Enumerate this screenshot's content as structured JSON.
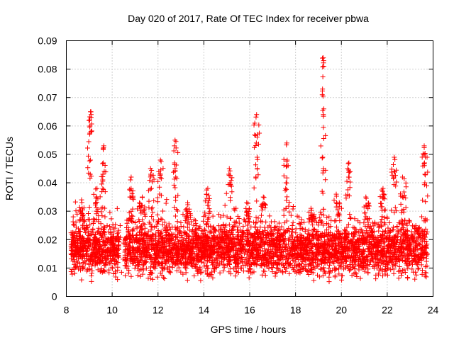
{
  "chart_data": {
    "type": "scatter",
    "title": "Day 020 of 2017, Rate Of TEC Index for receiver pbwa",
    "xlabel": "GPS time / hours",
    "ylabel": "ROTI / TECUs",
    "xlim": [
      8,
      24
    ],
    "ylim": [
      0,
      0.09
    ],
    "xticks": [
      "8",
      "10",
      "12",
      "14",
      "16",
      "18",
      "20",
      "22",
      "24"
    ],
    "yticks": [
      "0",
      "0.01",
      "0.02",
      "0.03",
      "0.04",
      "0.05",
      "0.06",
      "0.07",
      "0.08",
      "0.09"
    ],
    "grid": true,
    "marker": "+",
    "color": "#ff0000",
    "density_profile": {
      "x_start": 8.2,
      "x_end": 23.75,
      "baseline_low": 0.004,
      "baseline_mid": 0.014,
      "baseline_high": 0.028,
      "gap_between": [
        10.3,
        10.55
      ]
    },
    "spikes": [
      {
        "x": 8.7,
        "y": [
          0.025,
          0.028,
          0.031,
          0.034
        ]
      },
      {
        "x": 9.05,
        "y": [
          0.043,
          0.048,
          0.058,
          0.06,
          0.063,
          0.064,
          0.065
        ]
      },
      {
        "x": 9.3,
        "y": [
          0.03,
          0.033,
          0.035,
          0.038
        ]
      },
      {
        "x": 9.6,
        "y": [
          0.038,
          0.041,
          0.043,
          0.047,
          0.052,
          0.053
        ]
      },
      {
        "x": 10.8,
        "y": [
          0.035,
          0.038,
          0.042
        ]
      },
      {
        "x": 11.3,
        "y": [
          0.032,
          0.035
        ]
      },
      {
        "x": 11.7,
        "y": [
          0.038,
          0.043,
          0.045
        ]
      },
      {
        "x": 12.1,
        "y": [
          0.043,
          0.048
        ]
      },
      {
        "x": 12.75,
        "y": [
          0.042,
          0.045,
          0.047,
          0.053,
          0.055
        ]
      },
      {
        "x": 13.3,
        "y": [
          0.03,
          0.033
        ]
      },
      {
        "x": 14.15,
        "y": [
          0.033,
          0.036,
          0.038
        ]
      },
      {
        "x": 15.1,
        "y": [
          0.04,
          0.043,
          0.045
        ]
      },
      {
        "x": 15.9,
        "y": [
          0.03,
          0.033
        ]
      },
      {
        "x": 16.3,
        "y": [
          0.042,
          0.045,
          0.049,
          0.054,
          0.057,
          0.064
        ]
      },
      {
        "x": 16.6,
        "y": [
          0.032,
          0.035
        ]
      },
      {
        "x": 17.6,
        "y": [
          0.038,
          0.04,
          0.046,
          0.048,
          0.054
        ]
      },
      {
        "x": 18.7,
        "y": [
          0.028,
          0.031
        ]
      },
      {
        "x": 19.2,
        "y": [
          0.037,
          0.045,
          0.049,
          0.064,
          0.066,
          0.071,
          0.073,
          0.081,
          0.083,
          0.084
        ]
      },
      {
        "x": 19.8,
        "y": [
          0.033,
          0.036
        ]
      },
      {
        "x": 20.3,
        "y": [
          0.042,
          0.045,
          0.047
        ]
      },
      {
        "x": 21.1,
        "y": [
          0.032,
          0.035
        ]
      },
      {
        "x": 21.8,
        "y": [
          0.035,
          0.037,
          0.038
        ]
      },
      {
        "x": 22.3,
        "y": [
          0.042,
          0.044,
          0.049
        ]
      },
      {
        "x": 22.7,
        "y": [
          0.035,
          0.042
        ]
      },
      {
        "x": 23.65,
        "y": [
          0.04,
          0.043,
          0.047,
          0.05,
          0.053
        ]
      }
    ]
  }
}
